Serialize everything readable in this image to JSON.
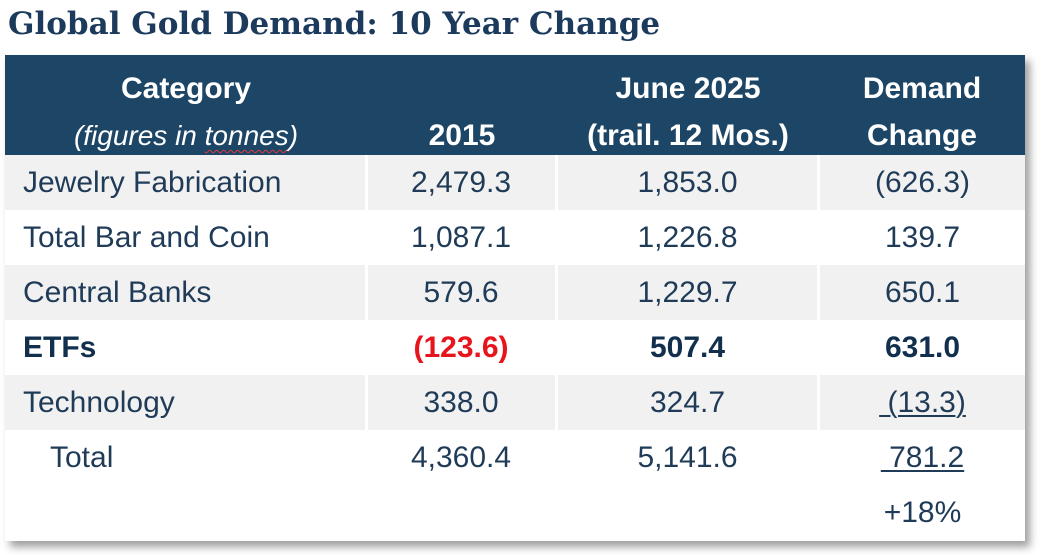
{
  "title": "Global Gold Demand: 10 Year Change",
  "header": {
    "category": "Category",
    "category_note_pre": "(figures in ",
    "category_note_word": "tonnes",
    "category_note_post": ")",
    "col_2015": "2015",
    "col_june_l1": "June 2025",
    "col_june_l2": "(trail. 12 Mos.)",
    "col_change_l1": "Demand",
    "col_change_l2": "Change"
  },
  "rows": [
    {
      "name": "Jewelry Fabrication",
      "v2015": "2,479.3",
      "v2025": "1,853.0",
      "change": "(626.3)"
    },
    {
      "name": "Total Bar and Coin",
      "v2015": "1,087.1",
      "v2025": "1,226.8",
      "change": "139.7"
    },
    {
      "name": "Central Banks",
      "v2015": "579.6",
      "v2025": "1,229.7",
      "change": "650.1"
    },
    {
      "name": "ETFs",
      "v2015": "(123.6)",
      "v2025": "507.4",
      "change": "631.0"
    },
    {
      "name": "Technology",
      "v2015": "338.0",
      "v2025": "324.7",
      "change": " (13.3)"
    },
    {
      "name": "Total",
      "v2015": "4,360.4",
      "v2025": "5,141.6",
      "change": " 781.2"
    }
  ],
  "pct_change": "+18%",
  "colors": {
    "header_bg": "#1c4566",
    "title": "#1c3b5c",
    "negative_highlight": "#e8141c",
    "row_shade": "#f1f1f1"
  }
}
